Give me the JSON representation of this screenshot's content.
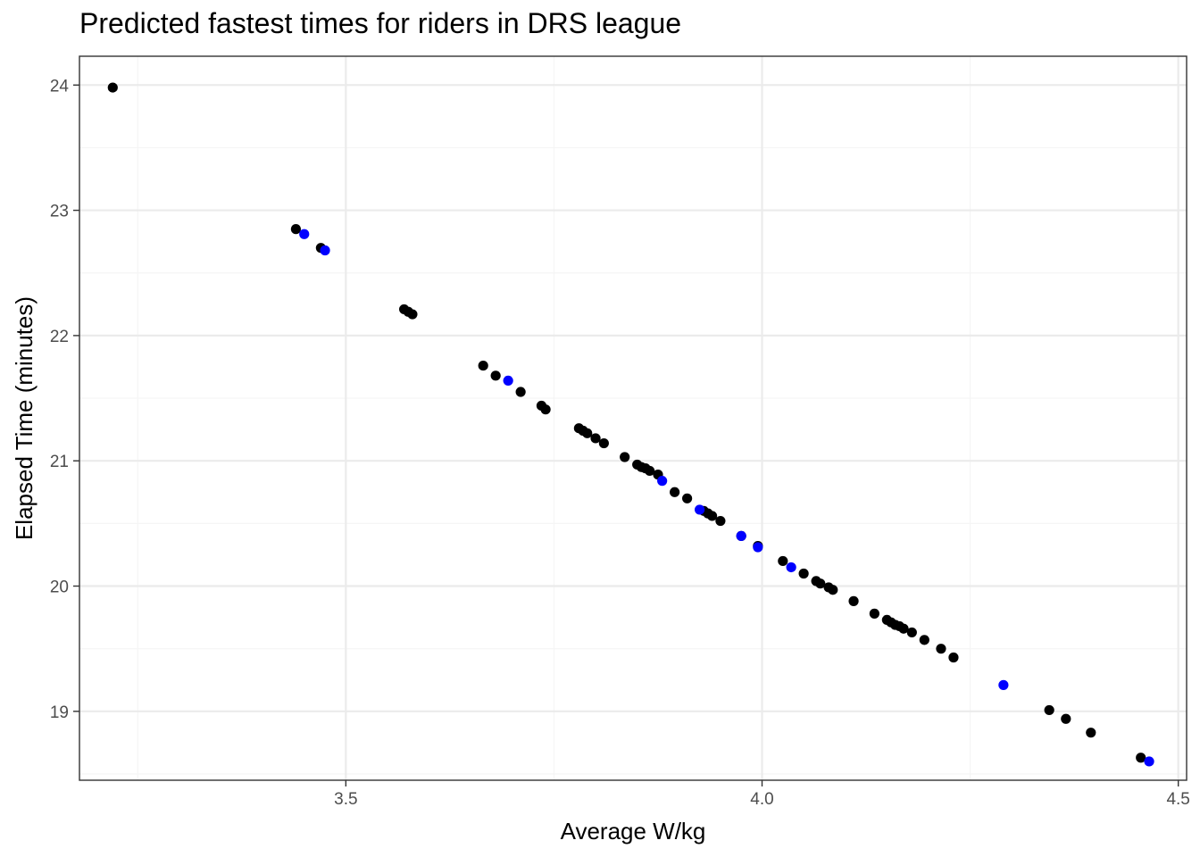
{
  "chart_data": {
    "type": "scatter",
    "title": "Predicted fastest times for riders in DRS league",
    "xlabel": "Average W/kg",
    "ylabel": "Elapsed Time (minutes)",
    "xlim": [
      3.18,
      4.51
    ],
    "ylim": [
      18.45,
      24.23
    ],
    "x_ticks": [
      3.5,
      4.0,
      4.5
    ],
    "x_tick_labels": [
      "3.5",
      "4.0",
      "4.5"
    ],
    "y_ticks": [
      19,
      20,
      21,
      22,
      23,
      24
    ],
    "y_tick_labels": [
      "19",
      "20",
      "21",
      "22",
      "23",
      "24"
    ],
    "grid": true,
    "legend": "none",
    "colors": {
      "black": "#000000",
      "blue": "#0000ff",
      "panel_border": "#333333",
      "grid_major": "#ebebeb",
      "grid_minor": "#f5f5f5"
    },
    "series": [
      {
        "color": "#000000",
        "points": [
          [
            3.22,
            23.98
          ],
          [
            3.44,
            22.85
          ],
          [
            3.47,
            22.7
          ],
          [
            3.57,
            22.21
          ],
          [
            3.575,
            22.19
          ],
          [
            3.58,
            22.17
          ],
          [
            3.665,
            21.76
          ],
          [
            3.68,
            21.68
          ],
          [
            3.71,
            21.55
          ],
          [
            3.735,
            21.44
          ],
          [
            3.74,
            21.41
          ],
          [
            3.78,
            21.26
          ],
          [
            3.785,
            21.24
          ],
          [
            3.79,
            21.22
          ],
          [
            3.8,
            21.18
          ],
          [
            3.81,
            21.14
          ],
          [
            3.835,
            21.03
          ],
          [
            3.85,
            20.97
          ],
          [
            3.855,
            20.95
          ],
          [
            3.86,
            20.94
          ],
          [
            3.865,
            20.92
          ],
          [
            3.875,
            20.89
          ],
          [
            3.895,
            20.75
          ],
          [
            3.91,
            20.7
          ],
          [
            3.93,
            20.6
          ],
          [
            3.935,
            20.58
          ],
          [
            3.94,
            20.56
          ],
          [
            3.95,
            20.52
          ],
          [
            3.975,
            20.4
          ],
          [
            3.995,
            20.32
          ],
          [
            4.025,
            20.2
          ],
          [
            4.05,
            20.1
          ],
          [
            4.065,
            20.04
          ],
          [
            4.07,
            20.02
          ],
          [
            4.08,
            19.99
          ],
          [
            4.085,
            19.97
          ],
          [
            4.11,
            19.88
          ],
          [
            4.135,
            19.78
          ],
          [
            4.15,
            19.73
          ],
          [
            4.155,
            19.71
          ],
          [
            4.16,
            19.69
          ],
          [
            4.165,
            19.68
          ],
          [
            4.17,
            19.66
          ],
          [
            4.18,
            19.63
          ],
          [
            4.195,
            19.57
          ],
          [
            4.215,
            19.5
          ],
          [
            4.23,
            19.43
          ],
          [
            4.345,
            19.01
          ],
          [
            4.365,
            18.94
          ],
          [
            4.395,
            18.83
          ],
          [
            4.455,
            18.63
          ]
        ]
      },
      {
        "color": "#0000ff",
        "points": [
          [
            3.45,
            22.81
          ],
          [
            3.475,
            22.68
          ],
          [
            3.695,
            21.64
          ],
          [
            3.88,
            20.84
          ],
          [
            3.925,
            20.61
          ],
          [
            3.975,
            20.4
          ],
          [
            3.995,
            20.31
          ],
          [
            4.035,
            20.15
          ],
          [
            4.29,
            19.21
          ],
          [
            4.465,
            18.6
          ]
        ]
      }
    ]
  }
}
